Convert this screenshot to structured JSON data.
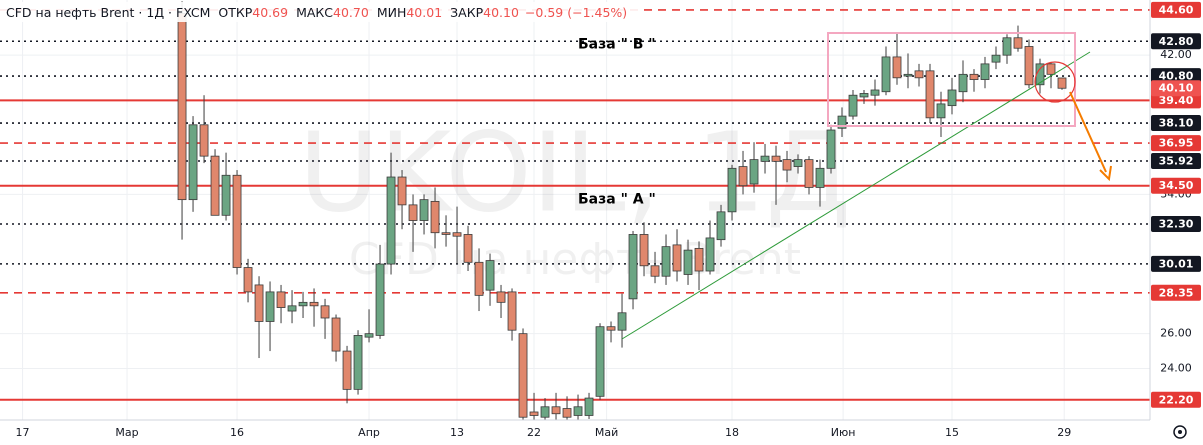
{
  "chart_data": {
    "type": "candlestick",
    "title": "CFD на нефть Brent · 1Д · FXCM",
    "ohlc_header": [
      {
        "label": "ОТКР",
        "value": "40.69"
      },
      {
        "label": "МАКС",
        "value": "40.70"
      },
      {
        "label": "МИН",
        "value": "40.01"
      },
      {
        "label": "ЗАКР",
        "value": "40.10"
      }
    ],
    "change": "−0.59 (−1.45%)",
    "watermark": "UKOIL, 1Д",
    "watermark_subtitle": "CFD на нефть Brent",
    "annotations": [
      {
        "text": "База \" В \"",
        "x": 36,
        "y": 42.6
      },
      {
        "text": "База \" А \"",
        "x": 36,
        "y": 33.7
      }
    ],
    "x": [
      0,
      1,
      2,
      3,
      4,
      5,
      6,
      7,
      8,
      9,
      10,
      11,
      12,
      13,
      14,
      15,
      16,
      17,
      18,
      19,
      20,
      21,
      22,
      23,
      24,
      25,
      26,
      27,
      28,
      29,
      30,
      31,
      32,
      33,
      34,
      35,
      36,
      37,
      38,
      39,
      40,
      41,
      42,
      43,
      44,
      45,
      46,
      47,
      48,
      49,
      50,
      51,
      52,
      53,
      54,
      55,
      56,
      57,
      58,
      59,
      60,
      61,
      62,
      63,
      64,
      65,
      66,
      67,
      68,
      69,
      70,
      71,
      72,
      73,
      74,
      75,
      76,
      77,
      78,
      79,
      80
    ],
    "open": [
      44.4,
      33.7,
      38.0,
      36.2,
      32.8,
      35.1,
      29.8,
      28.8,
      26.7,
      28.4,
      27.3,
      27.6,
      27.8,
      27.6,
      26.9,
      25.0,
      22.8,
      25.8,
      25.9,
      30.0,
      35.0,
      33.4,
      32.5,
      33.6,
      31.8,
      31.8,
      31.7,
      30.1,
      28.5,
      28.4,
      28.4,
      26.0,
      21.5,
      21.2,
      21.8,
      21.7,
      21.3,
      21.3,
      22.4,
      26.4,
      26.2,
      28.0,
      31.7,
      29.9,
      29.3,
      31.1,
      29.4,
      30.9,
      29.6,
      31.4,
      33.0,
      35.6,
      34.6,
      35.9,
      36.2,
      36.0,
      35.6,
      36.0,
      34.4,
      35.5,
      37.8,
      38.5,
      39.6,
      39.7,
      39.9,
      41.9,
      40.8,
      41.1,
      41.1,
      38.4,
      39.1,
      39.9,
      40.9,
      40.6,
      41.6,
      42.0,
      43.0,
      42.5,
      40.3,
      41.5,
      40.69
    ],
    "high": [
      45.1,
      38.5,
      39.7,
      36.6,
      36.4,
      35.4,
      30.3,
      29.3,
      29.0,
      28.8,
      28.5,
      28.4,
      28.6,
      28.0,
      27.1,
      25.3,
      26.2,
      27.4,
      31.1,
      36.4,
      35.4,
      34.0,
      34.0,
      34.4,
      32.8,
      33.3,
      32.2,
      30.9,
      30.6,
      28.8,
      28.6,
      26.3,
      22.6,
      22.3,
      22.6,
      22.4,
      22.5,
      22.6,
      26.6,
      26.7,
      28.3,
      31.9,
      32.4,
      30.7,
      31.7,
      32.0,
      31.4,
      31.3,
      32.5,
      33.4,
      35.7,
      36.5,
      37.0,
      36.9,
      36.8,
      36.5,
      36.3,
      36.2,
      36.0,
      38.0,
      39.0,
      40.0,
      40.0,
      40.6,
      42.5,
      43.3,
      42.1,
      41.5,
      41.5,
      39.9,
      40.7,
      41.7,
      41.2,
      41.9,
      42.5,
      43.2,
      43.7,
      42.9,
      41.8,
      41.6,
      40.7
    ],
    "low": [
      31.4,
      33.0,
      35.8,
      32.8,
      32.5,
      29.4,
      27.8,
      24.6,
      25.0,
      26.6,
      26.6,
      26.9,
      26.4,
      25.7,
      24.4,
      22.0,
      22.5,
      25.5,
      25.7,
      29.4,
      32.0,
      30.7,
      31.7,
      30.9,
      31.0,
      30.0,
      29.6,
      27.3,
      27.6,
      26.9,
      25.6,
      21.0,
      21.0,
      21.0,
      21.0,
      21.0,
      21.0,
      21.1,
      22.2,
      25.5,
      25.2,
      27.4,
      29.3,
      28.9,
      28.8,
      29.0,
      28.8,
      28.5,
      29.4,
      31.0,
      32.5,
      34.0,
      34.1,
      35.2,
      33.4,
      34.7,
      35.2,
      34.0,
      33.3,
      35.2,
      37.3,
      38.3,
      39.2,
      39.1,
      39.7,
      40.3,
      40.1,
      40.2,
      38.1,
      37.3,
      38.6,
      39.3,
      39.9,
      40.1,
      41.2,
      41.5,
      42.2,
      40.1,
      39.8,
      40.1,
      40.01
    ],
    "close": [
      33.7,
      38.0,
      36.2,
      32.8,
      35.1,
      29.8,
      28.4,
      26.7,
      28.4,
      27.5,
      27.6,
      27.8,
      27.6,
      26.9,
      25.0,
      22.8,
      25.9,
      26.0,
      30.0,
      35.0,
      33.4,
      32.5,
      33.7,
      31.8,
      31.7,
      31.6,
      30.1,
      28.2,
      30.2,
      27.8,
      26.2,
      21.2,
      21.3,
      21.8,
      21.4,
      21.2,
      21.8,
      22.3,
      26.4,
      26.2,
      27.2,
      31.7,
      29.9,
      29.3,
      31.0,
      29.6,
      30.8,
      29.6,
      31.5,
      33.0,
      35.5,
      34.5,
      36.0,
      36.2,
      35.9,
      35.4,
      36.0,
      34.4,
      35.5,
      37.7,
      38.5,
      39.7,
      39.8,
      40.0,
      41.9,
      40.7,
      40.9,
      40.7,
      38.4,
      39.2,
      40.0,
      40.9,
      40.6,
      41.5,
      42.0,
      43.0,
      42.4,
      40.3,
      41.5,
      40.9,
      40.1
    ],
    "up_color": "#6ba583",
    "down_color": "#e0876c",
    "xlim": [
      -16.55,
      88.0
    ],
    "xticks": [
      {
        "value": -14.5,
        "label": "17"
      },
      {
        "value": -5,
        "label": "Мар"
      },
      {
        "value": 5,
        "label": "16"
      },
      {
        "value": 17,
        "label": "Апр"
      },
      {
        "value": 25,
        "label": "13"
      },
      {
        "value": 32,
        "label": "22"
      },
      {
        "value": 38.6,
        "label": "Май"
      },
      {
        "value": 50,
        "label": "18"
      },
      {
        "value": 60.1,
        "label": "Июн"
      },
      {
        "value": 70,
        "label": "15"
      },
      {
        "value": 80.2,
        "label": "29"
      }
    ],
    "ylim": [
      21.04,
      45.17
    ],
    "yticks": [
      {
        "value": 24,
        "label": "24.00"
      },
      {
        "value": 26,
        "label": "26.00"
      },
      {
        "value": 34,
        "label": "34.00"
      },
      {
        "value": 42,
        "label": "42.00"
      }
    ],
    "grid": true,
    "levels": [
      {
        "value": 44.6,
        "label": "44.60",
        "style": "dashed",
        "color": "#e53935"
      },
      {
        "value": 42.8,
        "label": "42.80",
        "style": "dotted",
        "color": "#131722"
      },
      {
        "value": 40.8,
        "label": "40.80",
        "style": "dotted",
        "color": "#131722"
      },
      {
        "value": 39.4,
        "label": "39.40",
        "style": "solid",
        "color": "#e53935"
      },
      {
        "value": 38.1,
        "label": "38.10",
        "style": "dotted",
        "color": "#131722"
      },
      {
        "value": 36.95,
        "label": "36.95",
        "style": "dashed",
        "color": "#e53935"
      },
      {
        "value": 35.92,
        "label": "35.92",
        "style": "dotted",
        "color": "#131722"
      },
      {
        "value": 34.5,
        "label": "34.50",
        "style": "solid",
        "color": "#e53935"
      },
      {
        "value": 32.3,
        "label": "32.30",
        "style": "dotted",
        "color": "#131722"
      },
      {
        "value": 30.01,
        "label": "30.01",
        "style": "dotted",
        "color": "#131722"
      },
      {
        "value": 28.35,
        "label": "28.35",
        "style": "dashed",
        "color": "#e53935"
      },
      {
        "value": 22.2,
        "label": "22.20",
        "style": "solid",
        "color": "#e53935"
      }
    ],
    "last_price": {
      "value": 40.1,
      "label": "40.10",
      "color": "#ef5350"
    }
  }
}
